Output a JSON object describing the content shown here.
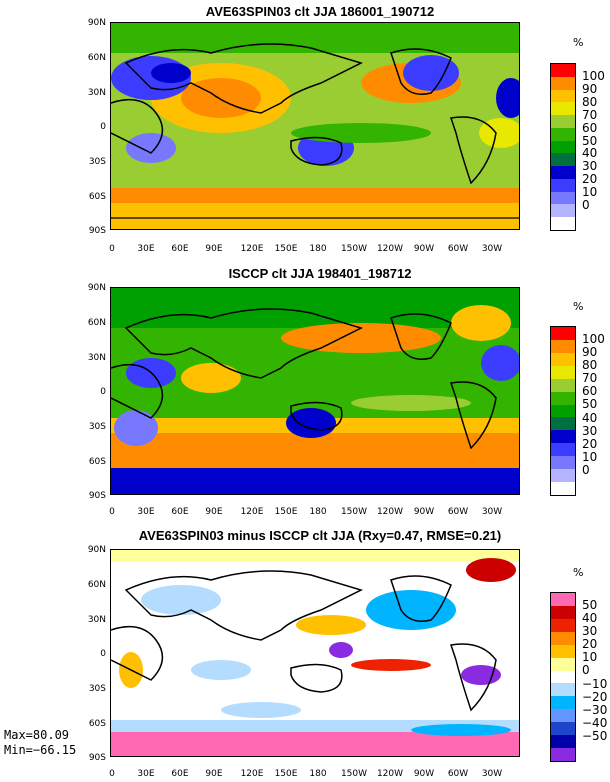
{
  "panels": [
    {
      "title": "AVE63SPIN03 clt JJA 186001_190712",
      "units": "%",
      "levels": [
        "100",
        "90",
        "80",
        "70",
        "60",
        "50",
        "40",
        "30",
        "20",
        "10",
        "0"
      ],
      "colors": [
        "#ff0000",
        "#ff8c00",
        "#ffc000",
        "#e8e800",
        "#9acd32",
        "#32b400",
        "#00a000",
        "#007040",
        "#0000cc",
        "#3c3cff",
        "#7878ff",
        "#b4b4ff",
        "#ffffff"
      ]
    },
    {
      "title": "ISCCP clt JJA 198401_198712",
      "units": "%",
      "levels": [
        "100",
        "90",
        "80",
        "70",
        "60",
        "50",
        "40",
        "30",
        "20",
        "10",
        "0"
      ],
      "colors": [
        "#ff0000",
        "#ff8c00",
        "#ffc000",
        "#e8e800",
        "#9acd32",
        "#32b400",
        "#00a000",
        "#007040",
        "#0000cc",
        "#3c3cff",
        "#7878ff",
        "#b4b4ff",
        "#ffffff"
      ]
    },
    {
      "title": "AVE63SPIN03 minus ISCCP clt JJA (Rxy=0.47, RMSE=0.21)",
      "units": "%",
      "levels": [
        "50",
        "40",
        "30",
        "20",
        "10",
        "0",
        "−10",
        "−20",
        "−30",
        "−40",
        "−50"
      ],
      "colors": [
        "#ff69b4",
        "#cc0000",
        "#ee2200",
        "#ff8c00",
        "#ffc000",
        "#ffff99",
        "#ffffff",
        "#b4dcff",
        "#00b4ff",
        "#6496ff",
        "#1e46cc",
        "#0000aa",
        "#8a2be2"
      ]
    }
  ],
  "lat_labels": [
    "90N",
    "60N",
    "30N",
    "0",
    "30S",
    "60S",
    "90S"
  ],
  "lon_labels": [
    "0",
    "30E",
    "60E",
    "90E",
    "120E",
    "150E",
    "180",
    "150W",
    "120W",
    "90W",
    "60W",
    "30W"
  ],
  "stats": {
    "max": "Max=80.09",
    "min": "Min=−66.15"
  }
}
